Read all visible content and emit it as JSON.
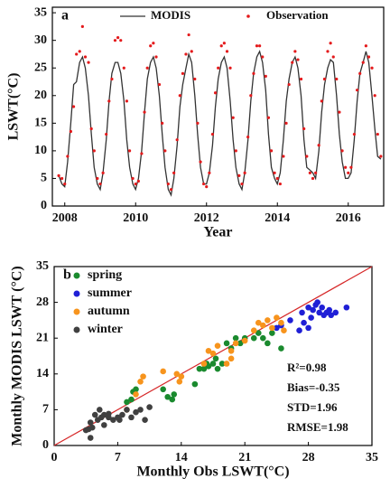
{
  "chart_data": [
    {
      "type": "line",
      "panel_label": "a",
      "xlabel": "Year",
      "ylabel": "LSWT(°C)",
      "xlim": [
        2007.65,
        2017.0
      ],
      "xticks": [
        2008,
        2010,
        2012,
        2014,
        2016
      ],
      "ylim": [
        0,
        36
      ],
      "yticks": [
        0,
        5,
        10,
        15,
        20,
        25,
        30,
        35
      ],
      "legend": "upper center",
      "x": [
        2007.83,
        2007.92,
        2008.0,
        2008.08,
        2008.17,
        2008.25,
        2008.33,
        2008.42,
        2008.5,
        2008.58,
        2008.67,
        2008.75,
        2008.83,
        2008.92,
        2009.0,
        2009.08,
        2009.17,
        2009.25,
        2009.33,
        2009.42,
        2009.5,
        2009.58,
        2009.67,
        2009.75,
        2009.83,
        2009.92,
        2010.0,
        2010.08,
        2010.17,
        2010.25,
        2010.33,
        2010.42,
        2010.5,
        2010.58,
        2010.67,
        2010.75,
        2010.83,
        2010.92,
        2011.0,
        2011.08,
        2011.17,
        2011.25,
        2011.33,
        2011.42,
        2011.5,
        2011.58,
        2011.67,
        2011.75,
        2011.83,
        2011.92,
        2012.0,
        2012.08,
        2012.17,
        2012.25,
        2012.33,
        2012.42,
        2012.5,
        2012.58,
        2012.67,
        2012.75,
        2012.83,
        2012.92,
        2013.0,
        2013.08,
        2013.17,
        2013.25,
        2013.33,
        2013.42,
        2013.5,
        2013.58,
        2013.67,
        2013.75,
        2013.83,
        2013.92,
        2014.0,
        2014.08,
        2014.17,
        2014.25,
        2014.33,
        2014.42,
        2014.5,
        2014.58,
        2014.67,
        2014.75,
        2014.83,
        2014.92,
        2015.0,
        2015.08,
        2015.17,
        2015.25,
        2015.33,
        2015.42,
        2015.5,
        2015.58,
        2015.67,
        2015.75,
        2015.83,
        2015.92,
        2016.0,
        2016.08,
        2016.17,
        2016.25,
        2016.33,
        2016.42,
        2016.5,
        2016.58,
        2016.67,
        2016.75,
        2016.83,
        2016.92
      ],
      "series": [
        {
          "name": "MODIS",
          "color": "#333333",
          "mode": "lines",
          "values": [
            5.5,
            4,
            3.5,
            8,
            15,
            22,
            22.5,
            26,
            27,
            25,
            20,
            13,
            7,
            4,
            3,
            6,
            12,
            19,
            24,
            26,
            26,
            24,
            19,
            12,
            7,
            4,
            3,
            5,
            10,
            17,
            23,
            26,
            27,
            25,
            20,
            13,
            7,
            3,
            2,
            5,
            11,
            18,
            22,
            25,
            27.5,
            26,
            20,
            13,
            7,
            4,
            4,
            6,
            11,
            18,
            23,
            26,
            27,
            25,
            19,
            12,
            7,
            4,
            3,
            6,
            12,
            19,
            24,
            27,
            28,
            26,
            21,
            13,
            7,
            5,
            4,
            6,
            12,
            19,
            23,
            26,
            27,
            25,
            20,
            12,
            7,
            6.5,
            6,
            5,
            10,
            17,
            22,
            25,
            26.5,
            26,
            20,
            13,
            8,
            5,
            5,
            6,
            12,
            19,
            24,
            26,
            28,
            26,
            20,
            14,
            9,
            8.5
          ]
        },
        {
          "name": "Observation",
          "color": "#e41a1c",
          "mode": "markers",
          "values": [
            5.5,
            5,
            4,
            9,
            13.5,
            18,
            27.5,
            28,
            32.5,
            27,
            26,
            14,
            10,
            5,
            4,
            6,
            13,
            19,
            23,
            30,
            30.5,
            30,
            25,
            19,
            10,
            5,
            4,
            4.5,
            9.5,
            17,
            25,
            29,
            29.5,
            27,
            22,
            15,
            10,
            4,
            3,
            6,
            12,
            20,
            24,
            27.5,
            31,
            28,
            23,
            15,
            8,
            4,
            3.5,
            6,
            13,
            20.5,
            25,
            29,
            29.5,
            28,
            25,
            16,
            10,
            5.5,
            4,
            6,
            12.5,
            20,
            24,
            29,
            29,
            27,
            23.5,
            16,
            10,
            6,
            5,
            4,
            9,
            15,
            22,
            26,
            28,
            26.5,
            23,
            14,
            9,
            6,
            5,
            6,
            11,
            19,
            23,
            28,
            29.5,
            27,
            23,
            17,
            10,
            7,
            6,
            7,
            13,
            21,
            24,
            26,
            29,
            27,
            25,
            20,
            13,
            9
          ]
        }
      ]
    },
    {
      "type": "scatter",
      "panel_label": "b",
      "xlabel": "Monthly Obs LSWT(°C)",
      "ylabel": "Monthly MODIS LSWT (°C)",
      "xlim": [
        0,
        35
      ],
      "xticks": [
        0,
        7,
        14,
        21,
        28,
        35
      ],
      "ylim": [
        0,
        35
      ],
      "yticks": [
        0,
        7,
        14,
        21,
        28,
        35
      ],
      "legend": "upper left",
      "identity_line_color": "#d62728",
      "annotations": [
        "R²=0.98",
        "Bias=-0.35",
        "STD=1.96",
        "RMSE=1.98"
      ],
      "series": [
        {
          "name": "spring",
          "color": "#1a8a2e",
          "x": [
            8,
            8.5,
            8.7,
            9,
            12,
            12.5,
            13,
            13.2,
            16.5,
            16.8,
            17,
            17.5,
            17.8,
            18,
            18.5,
            19,
            19.5,
            20,
            20.5,
            21,
            22,
            22.5,
            23,
            23.5,
            24,
            25,
            15.5,
            16
          ],
          "values": [
            8.5,
            9,
            10.5,
            11,
            11,
            9.5,
            9,
            10,
            15,
            16,
            15.5,
            16,
            17,
            15,
            16,
            20,
            19,
            21,
            20,
            21,
            21,
            22,
            21,
            20,
            22,
            19,
            12,
            15
          ]
        },
        {
          "name": "summer",
          "color": "#1f1fd6",
          "x": [
            24.5,
            25,
            26,
            27,
            27.3,
            27.5,
            28,
            28.3,
            28.5,
            28.8,
            29,
            29.2,
            29.5,
            29.7,
            30,
            30.3,
            30.5,
            31,
            32.2,
            28
          ],
          "values": [
            23,
            23.5,
            24.5,
            22.5,
            26,
            24,
            27,
            25,
            26.5,
            27.5,
            28,
            26,
            27,
            25.5,
            26,
            26.5,
            25.5,
            26,
            27,
            23
          ]
        },
        {
          "name": "autumn",
          "color": "#f7941d",
          "x": [
            8,
            9,
            9.5,
            9.8,
            12,
            13.5,
            13.8,
            14,
            16.5,
            17,
            17.5,
            18,
            19,
            19.5,
            20,
            21,
            22,
            22.5,
            23,
            23.5,
            24,
            24.5,
            25,
            25.3,
            19.5
          ],
          "values": [
            7,
            10,
            12.5,
            13.5,
            14.5,
            14,
            12.5,
            13.5,
            16,
            18.5,
            18,
            19.5,
            16,
            17,
            20,
            20.5,
            22.5,
            24,
            23.5,
            24.5,
            23,
            25,
            24,
            22.5,
            18.5
          ]
        },
        {
          "name": "winter",
          "color": "#404040",
          "x": [
            3.5,
            3.8,
            4,
            4,
            4.5,
            4.8,
            5,
            5.5,
            5.5,
            6,
            6.5,
            7,
            7.2,
            7.5,
            8,
            8.5,
            9,
            9.5,
            10,
            10.5,
            4.2,
            5.2,
            6
          ],
          "values": [
            3,
            3.2,
            1.5,
            4.5,
            6,
            5,
            7,
            6,
            4,
            5.5,
            5,
            5.5,
            5,
            6,
            7,
            5.5,
            6.5,
            7,
            5,
            7.5,
            3.5,
            5.5,
            6.2
          ]
        }
      ]
    }
  ]
}
